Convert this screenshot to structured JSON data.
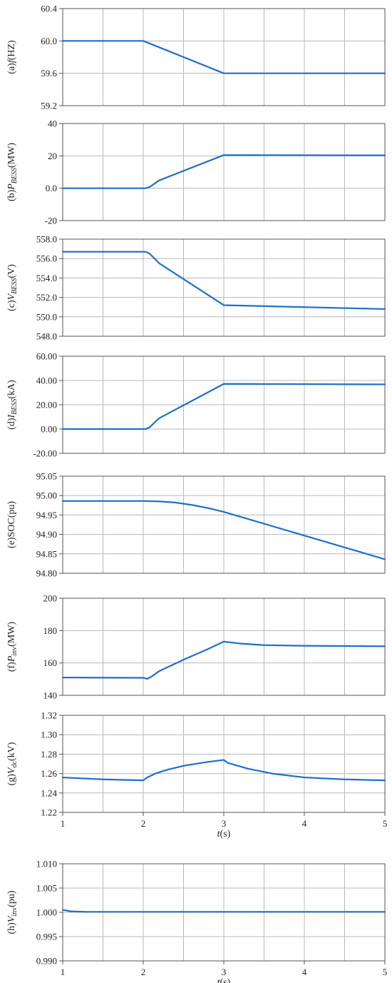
{
  "colors": {
    "series": "#1f6fc9",
    "grid": "#b8b8b8",
    "frame": "#555555"
  },
  "chart_data": [
    {
      "id": "a",
      "type": "line",
      "ylabel": {
        "prefix": "(a)",
        "sym": "f",
        "sub": "",
        "unit": "(HZ)"
      },
      "ylim": [
        59.2,
        60.4
      ],
      "xlim": [
        1,
        5
      ],
      "yticks": [
        "60.4",
        "60.0",
        "59.6",
        "59.2"
      ],
      "xticks": [],
      "xlabel": "",
      "grid": true,
      "series": [
        {
          "x": [
            1,
            2,
            3,
            5
          ],
          "y": [
            60.0,
            60.0,
            59.6,
            59.6
          ]
        }
      ]
    },
    {
      "id": "b",
      "type": "line",
      "ylabel": {
        "prefix": "(b)",
        "sym": "P",
        "sub": "BESS",
        "unit": "(MW)"
      },
      "ylim": [
        -20,
        40
      ],
      "xlim": [
        1,
        5
      ],
      "yticks": [
        "40",
        "20",
        "0.0",
        "-20"
      ],
      "xticks": [],
      "xlabel": "",
      "grid": true,
      "series": [
        {
          "x": [
            1,
            2.03,
            2.08,
            2.15,
            2.2,
            3,
            5
          ],
          "y": [
            0,
            0,
            0.8,
            3.2,
            4.9,
            20.5,
            20.3
          ]
        }
      ]
    },
    {
      "id": "c",
      "type": "line",
      "ylabel": {
        "prefix": "(c)",
        "sym": "V",
        "sub": "BESS",
        "unit": "(V)"
      },
      "ylim": [
        548,
        558
      ],
      "xlim": [
        1,
        5
      ],
      "yticks": [
        "558.0",
        "556.0",
        "554.0",
        "552.0",
        "550.0",
        "548.0"
      ],
      "xticks": [],
      "xlabel": "",
      "grid": true,
      "series": [
        {
          "x": [
            1,
            2.03,
            2.08,
            2.14,
            2.2,
            3,
            5
          ],
          "y": [
            556.7,
            556.7,
            556.5,
            556.0,
            555.5,
            551.2,
            550.8
          ]
        }
      ]
    },
    {
      "id": "d",
      "type": "line",
      "ylabel": {
        "prefix": "(d)",
        "sym": "I",
        "sub": "BESS",
        "unit": "(kA)"
      },
      "ylim": [
        -20,
        60
      ],
      "xlim": [
        1,
        5
      ],
      "yticks": [
        "60.00",
        "40.00",
        "20.00",
        "0.00",
        "-20.00"
      ],
      "xticks": [],
      "xlabel": "",
      "grid": true,
      "series": [
        {
          "x": [
            1,
            2.03,
            2.08,
            2.15,
            2.2,
            3,
            5
          ],
          "y": [
            0,
            0,
            1.5,
            6.0,
            9.0,
            37.2,
            36.8
          ]
        }
      ]
    },
    {
      "id": "e",
      "type": "line",
      "ylabel": {
        "prefix": "(e)",
        "sym": "SOC",
        "sub": "",
        "unit": "(pu)"
      },
      "ylim": [
        94.8,
        95.05
      ],
      "xlim": [
        1,
        5
      ],
      "yticks": [
        "95.05",
        "95.00",
        "94.95",
        "94.90",
        "94.85",
        "94.80"
      ],
      "xticks": [],
      "xlabel": "",
      "grid": true,
      "series": [
        {
          "x": [
            1,
            2,
            2.2,
            2.4,
            2.6,
            2.8,
            3,
            5
          ],
          "y": [
            94.986,
            94.986,
            94.985,
            94.982,
            94.976,
            94.968,
            94.958,
            94.836
          ]
        }
      ]
    },
    {
      "id": "f",
      "type": "line",
      "ylabel": {
        "prefix": "(f)",
        "sym": "P",
        "sub": "inv",
        "unit": "(MW)"
      },
      "ylim": [
        140,
        200
      ],
      "xlim": [
        1,
        5
      ],
      "yticks": [
        "200",
        "180",
        "160",
        "140"
      ],
      "xticks": [],
      "xlabel": "",
      "grid": true,
      "series": [
        {
          "x": [
            1,
            2,
            2.05,
            2.1,
            2.2,
            2.5,
            2.8,
            3.0,
            3.2,
            3.5,
            4.0,
            5.0
          ],
          "y": [
            151.0,
            150.8,
            150.2,
            151.5,
            155.0,
            162.0,
            168.5,
            173.2,
            172.0,
            171.0,
            170.6,
            170.3
          ]
        }
      ]
    },
    {
      "id": "g",
      "type": "line",
      "ylabel": {
        "prefix": "(g)",
        "sym": "V",
        "sub": "dc",
        "unit": "(kV)"
      },
      "ylim": [
        1.22,
        1.32
      ],
      "xlim": [
        1,
        5
      ],
      "yticks": [
        "1.32",
        "1.30",
        "1.28",
        "1.26",
        "1.24",
        "1.22"
      ],
      "xticks": [
        "1",
        "2",
        "3",
        "4",
        "5"
      ],
      "xlabel": "t(s)",
      "grid": true,
      "series": [
        {
          "x": [
            1,
            1.5,
            2,
            2.05,
            2.15,
            2.3,
            2.5,
            2.8,
            3.0,
            3.05,
            3.3,
            3.6,
            4.0,
            4.5,
            5.0
          ],
          "y": [
            1.256,
            1.254,
            1.253,
            1.256,
            1.26,
            1.264,
            1.268,
            1.272,
            1.274,
            1.271,
            1.265,
            1.26,
            1.256,
            1.254,
            1.253
          ]
        }
      ]
    },
    {
      "id": "h",
      "type": "line",
      "ylabel": {
        "prefix": "(h)",
        "sym": "V",
        "sub": "inv",
        "unit": "(pu)"
      },
      "ylim": [
        0.99,
        1.01
      ],
      "xlim": [
        1,
        5
      ],
      "yticks": [
        "1.010",
        "1.005",
        "1.000",
        "0.995",
        "0.990"
      ],
      "xticks": [
        "1",
        "2",
        "3",
        "4",
        "5"
      ],
      "xlabel": "t(s)",
      "grid": true,
      "series": [
        {
          "x": [
            1,
            1.1,
            1.3,
            5
          ],
          "y": [
            1.0005,
            1.0002,
            1.0001,
            1.0001
          ]
        }
      ]
    }
  ]
}
